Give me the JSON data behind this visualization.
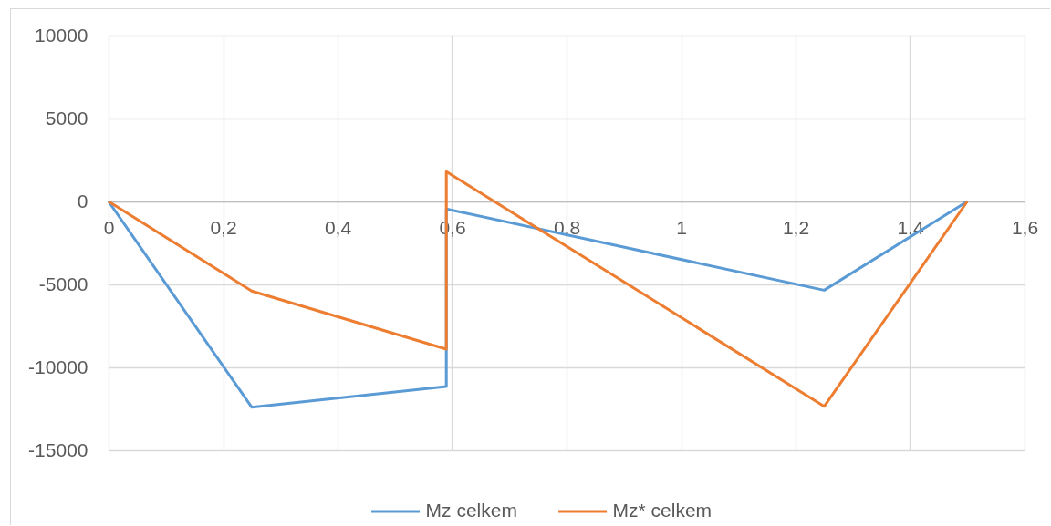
{
  "chart_data": {
    "type": "line",
    "xlim": [
      0,
      1.6
    ],
    "xticks": [
      0,
      {
        "value": 0.2,
        "label": "0,2"
      },
      {
        "value": 0.4,
        "label": "0,4"
      },
      {
        "value": 0.6,
        "label": "0,6"
      },
      {
        "value": 0.8,
        "label": "0,8"
      },
      1,
      {
        "value": 1.2,
        "label": "1,2"
      },
      {
        "value": 1.4,
        "label": "1,4"
      },
      {
        "value": 1.6,
        "label": "1,6"
      }
    ],
    "ylim": [
      -15000,
      10000
    ],
    "yticks": [
      -15000,
      -10000,
      -5000,
      0,
      5000,
      10000
    ],
    "grid": true,
    "legend": "bottom",
    "series": [
      {
        "name": "Mz celkem",
        "color": "#5b9bd5",
        "x": [
          0,
          0.25,
          0.59,
          0.59,
          1.25,
          1.5
        ],
        "values": [
          0,
          -12400,
          -11150,
          -450,
          -5350,
          0
        ]
      },
      {
        "name": "Mz* celkem",
        "color": "#ed7d31",
        "x": [
          0,
          0.25,
          0.59,
          0.59,
          1.25,
          1.5
        ],
        "values": [
          0,
          -5400,
          -8900,
          1800,
          -12350,
          0
        ]
      }
    ]
  }
}
